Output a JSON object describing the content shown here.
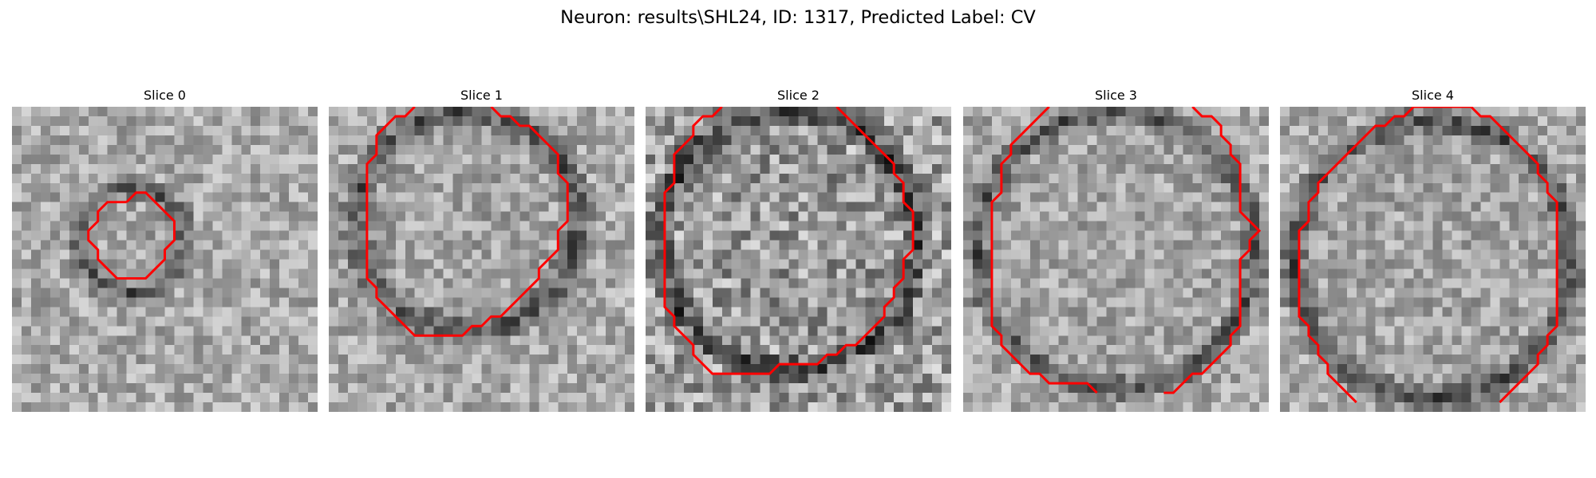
{
  "figure": {
    "suptitle": "Neuron: results\\SHL24, ID: 1317, Predicted Label: CV",
    "contour_color": "#ff0000",
    "colormap": "gray",
    "slices": [
      {
        "title": "Slice 0",
        "contour": "small-circle-offset"
      },
      {
        "title": "Slice 1",
        "contour": "large-circle-open-top"
      },
      {
        "title": "Slice 2",
        "contour": "large-circle-open-top"
      },
      {
        "title": "Slice 3",
        "contour": "large-circle-open-top-and-bottom"
      },
      {
        "title": "Slice 4",
        "contour": "large-circle-open-bottom"
      }
    ]
  }
}
